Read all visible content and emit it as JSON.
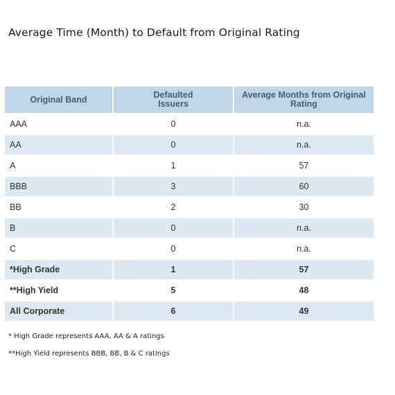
{
  "title": "Average Time (Month) to Default from Original Rating",
  "table": {
    "headers": [
      "Original Band",
      "Defaulted\nIssuers",
      "Average Months from Original\nRating"
    ],
    "rows": [
      {
        "band": "AAA",
        "issuers": "0",
        "months": "n.a."
      },
      {
        "band": "AA",
        "issuers": "0",
        "months": "n.a."
      },
      {
        "band": "A",
        "issuers": "1",
        "months": "57"
      },
      {
        "band": "BBB",
        "issuers": "3",
        "months": "60"
      },
      {
        "band": "BB",
        "issuers": "2",
        "months": "30"
      },
      {
        "band": "B",
        "issuers": "0",
        "months": "n.a."
      },
      {
        "band": "C",
        "issuers": "0",
        "months": "n.a."
      },
      {
        "band": "*High Grade",
        "issuers": "1",
        "months": "57"
      },
      {
        "band": "**High Yield",
        "issuers": "5",
        "months": "48"
      },
      {
        "band": "All Corporate",
        "issuers": "6",
        "months": "49"
      }
    ]
  },
  "notes": [
    "* High Grade represents AAA, AA & A ratings",
    "**High Yield represents BBB, BB, B & C ratings"
  ]
}
